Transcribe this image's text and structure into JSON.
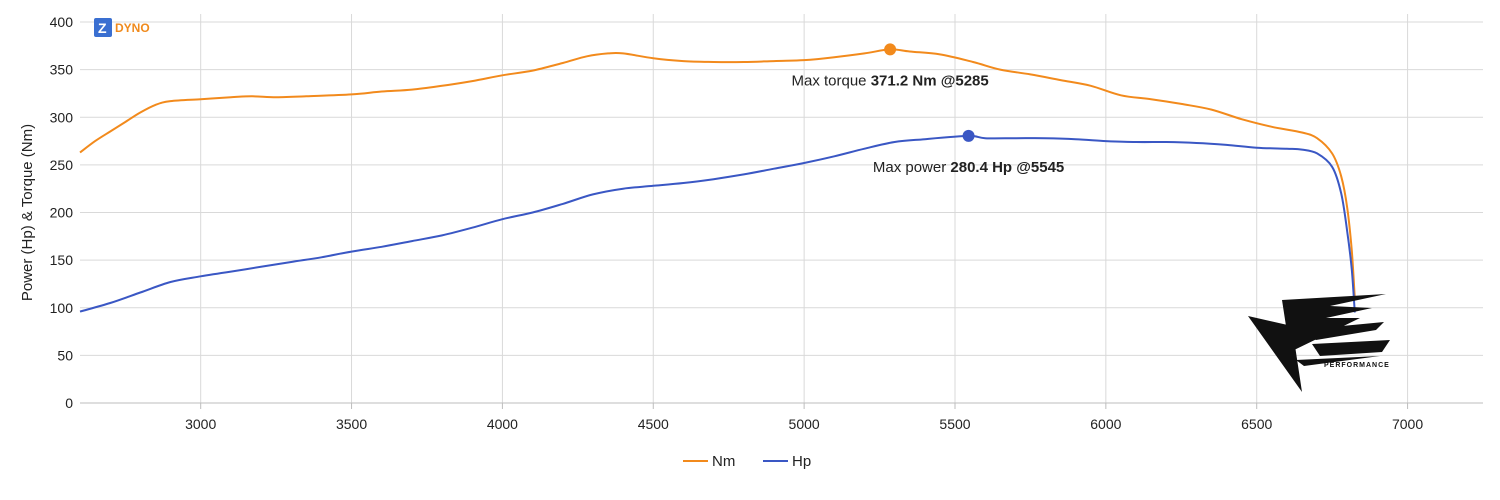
{
  "brand": {
    "logo_letter": "Z",
    "logo_text": "DYNO",
    "logo_color": "#3a6fd1",
    "text_color": "#f08a1c"
  },
  "watermark": {
    "caption": "PERFORMANCE"
  },
  "chart_data": {
    "type": "line",
    "title": "",
    "xlabel": "",
    "ylabel": "Power (Hp) & Torque (Nm)",
    "xlim": [
      2600,
      7250
    ],
    "ylim": [
      0,
      400
    ],
    "x_ticks": [
      3000,
      3500,
      4000,
      4500,
      5000,
      5500,
      6000,
      6500,
      7000
    ],
    "y_ticks": [
      0,
      50,
      100,
      150,
      200,
      250,
      300,
      350,
      400
    ],
    "grid": true,
    "legend_position": "bottom-center",
    "series": [
      {
        "name": "Nm",
        "color": "#f28a1c",
        "points": [
          [
            2600,
            263
          ],
          [
            2650,
            275
          ],
          [
            2700,
            285
          ],
          [
            2750,
            295
          ],
          [
            2800,
            305
          ],
          [
            2850,
            313
          ],
          [
            2900,
            317
          ],
          [
            3000,
            319
          ],
          [
            3100,
            321
          ],
          [
            3170,
            322
          ],
          [
            3250,
            321
          ],
          [
            3350,
            322
          ],
          [
            3500,
            324
          ],
          [
            3600,
            327
          ],
          [
            3700,
            329
          ],
          [
            3800,
            333
          ],
          [
            3900,
            338
          ],
          [
            4000,
            344
          ],
          [
            4100,
            349
          ],
          [
            4200,
            357
          ],
          [
            4280,
            364
          ],
          [
            4350,
            367
          ],
          [
            4400,
            367
          ],
          [
            4500,
            362
          ],
          [
            4600,
            359
          ],
          [
            4700,
            358
          ],
          [
            4800,
            358
          ],
          [
            4900,
            359
          ],
          [
            5000,
            360
          ],
          [
            5100,
            363
          ],
          [
            5200,
            367
          ],
          [
            5285,
            371.2
          ],
          [
            5350,
            369
          ],
          [
            5450,
            366
          ],
          [
            5560,
            358
          ],
          [
            5650,
            350
          ],
          [
            5750,
            345
          ],
          [
            5850,
            339
          ],
          [
            5950,
            333
          ],
          [
            6050,
            323
          ],
          [
            6150,
            319
          ],
          [
            6250,
            314
          ],
          [
            6350,
            308
          ],
          [
            6450,
            298
          ],
          [
            6550,
            290
          ],
          [
            6650,
            284
          ],
          [
            6700,
            278
          ],
          [
            6750,
            262
          ],
          [
            6780,
            238
          ],
          [
            6800,
            205
          ],
          [
            6815,
            160
          ],
          [
            6825,
            110
          ]
        ]
      },
      {
        "name": "Hp",
        "color": "#3a57c4",
        "points": [
          [
            2600,
            96
          ],
          [
            2700,
            105
          ],
          [
            2800,
            116
          ],
          [
            2900,
            127
          ],
          [
            3000,
            133
          ],
          [
            3100,
            138
          ],
          [
            3200,
            143
          ],
          [
            3300,
            148
          ],
          [
            3400,
            153
          ],
          [
            3500,
            159
          ],
          [
            3600,
            164
          ],
          [
            3700,
            170
          ],
          [
            3800,
            176
          ],
          [
            3900,
            184
          ],
          [
            4000,
            193
          ],
          [
            4100,
            200
          ],
          [
            4200,
            209
          ],
          [
            4300,
            219
          ],
          [
            4400,
            225
          ],
          [
            4500,
            228
          ],
          [
            4600,
            231
          ],
          [
            4700,
            235
          ],
          [
            4800,
            240
          ],
          [
            4900,
            246
          ],
          [
            5000,
            252
          ],
          [
            5100,
            259
          ],
          [
            5200,
            267
          ],
          [
            5300,
            274
          ],
          [
            5400,
            277
          ],
          [
            5545,
            280.4
          ],
          [
            5600,
            278
          ],
          [
            5700,
            278
          ],
          [
            5800,
            278
          ],
          [
            5900,
            277
          ],
          [
            6000,
            275
          ],
          [
            6100,
            274
          ],
          [
            6200,
            274
          ],
          [
            6300,
            273
          ],
          [
            6400,
            271
          ],
          [
            6500,
            268
          ],
          [
            6600,
            267
          ],
          [
            6650,
            266
          ],
          [
            6700,
            262
          ],
          [
            6750,
            248
          ],
          [
            6780,
            220
          ],
          [
            6800,
            180
          ],
          [
            6815,
            140
          ],
          [
            6825,
            95
          ]
        ]
      }
    ],
    "annotations": [
      {
        "series": "Nm",
        "x": 5285,
        "y": 371.2,
        "prefix": "Max torque",
        "value_text": "371.2 Nm @5285"
      },
      {
        "series": "Hp",
        "x": 5545,
        "y": 280.4,
        "prefix": "Max power",
        "value_text": "280.4 Hp @5545"
      }
    ]
  }
}
